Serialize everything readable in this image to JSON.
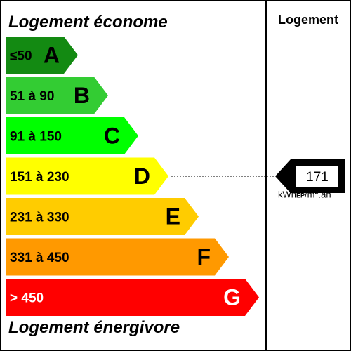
{
  "header": {
    "top_label": "Logement économe",
    "bottom_label": "Logement énergivore",
    "column_title": "Logement"
  },
  "classes": [
    {
      "range": "≤50",
      "letter": "A",
      "color": "#138A12"
    },
    {
      "range": "51 à 90",
      "letter": "B",
      "color": "#33CC33"
    },
    {
      "range": "91 à 150",
      "letter": "C",
      "color": "#00FF00"
    },
    {
      "range": "151 à 230",
      "letter": "D",
      "color": "#FFFF00"
    },
    {
      "range": "231 à 330",
      "letter": "E",
      "color": "#FFCC00"
    },
    {
      "range": "331 à 450",
      "letter": "F",
      "color": "#FF9900"
    },
    {
      "range": "> 450",
      "letter": "G",
      "color": "#FF0000"
    }
  ],
  "rating": {
    "value": "171",
    "class": "D",
    "unit_main": "kWh",
    "unit_sub": "EP",
    "unit_rest": "/m",
    "unit_sup": "2",
    "unit_tail": ".an"
  }
}
